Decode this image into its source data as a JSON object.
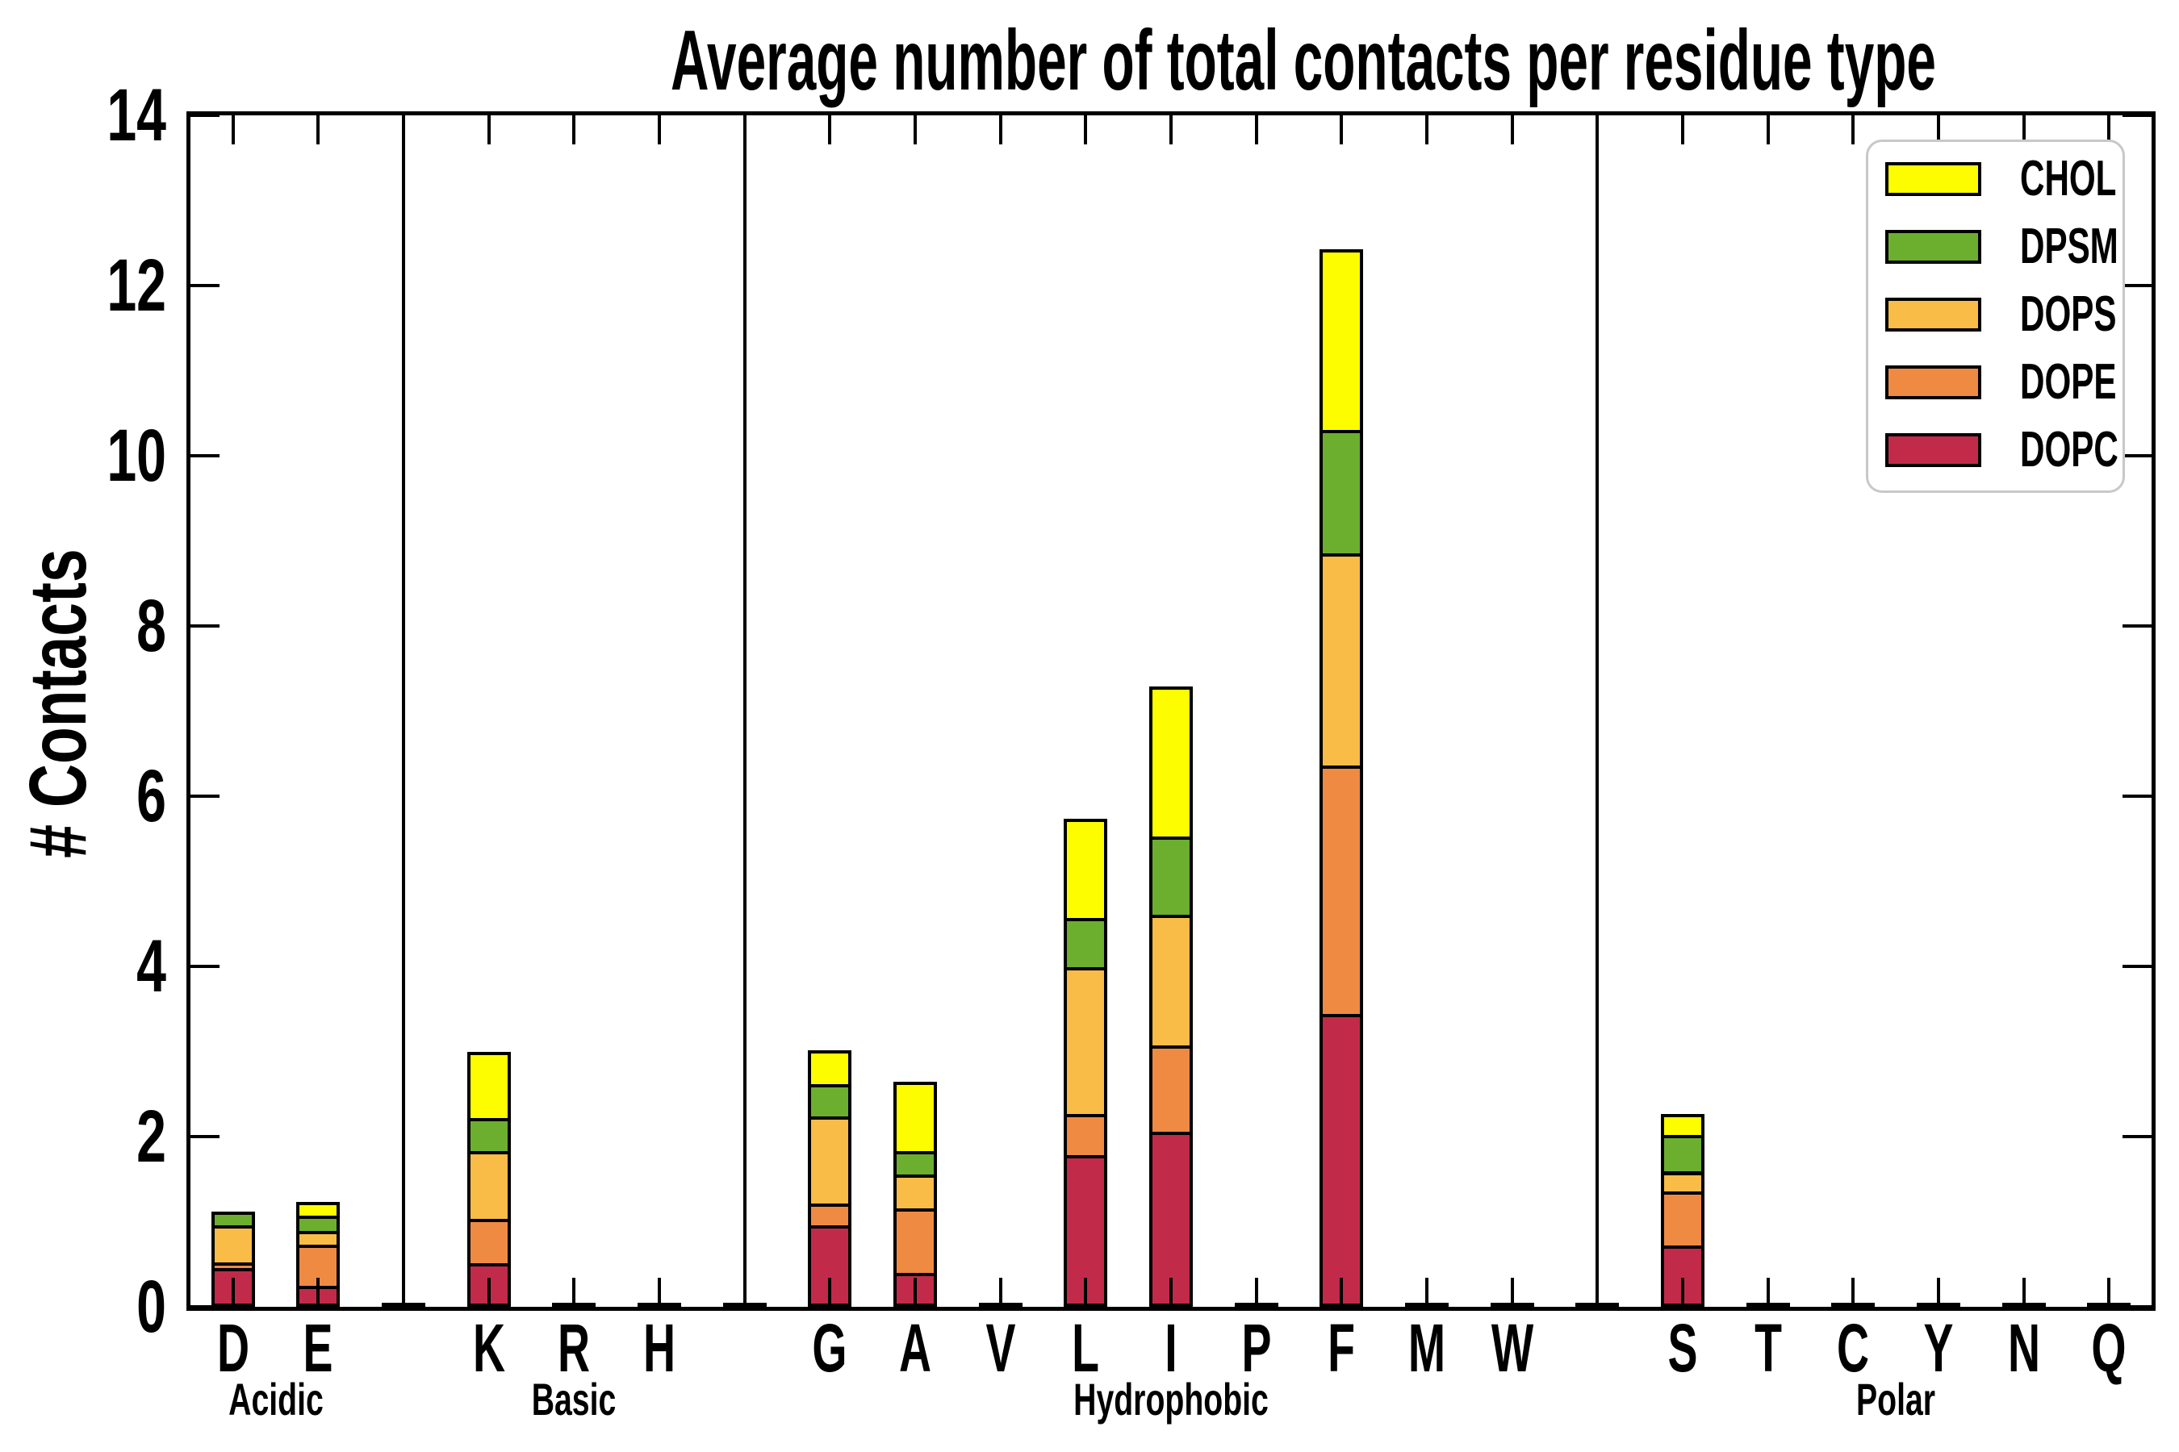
{
  "chart_data": {
    "type": "stacked-bar",
    "title": "Average number of total contacts per residue type",
    "ylabel": "# Contacts",
    "xlabel": "",
    "ylim": [
      0,
      14
    ],
    "yticks": [
      0,
      2,
      4,
      6,
      8,
      10,
      12,
      14
    ],
    "grid": "off",
    "legend_position": "upper-right",
    "legend": [
      "CHOL",
      "DPSM",
      "DOPS",
      "DOPE",
      "DOPC"
    ],
    "stack_order": [
      "DOPC",
      "DOPE",
      "DOPS",
      "DPSM",
      "CHOL"
    ],
    "colors": {
      "CHOL": "#fdfd00",
      "DPSM": "#6cae2e",
      "DOPS": "#f8bc47",
      "DOPE": "#ef8a43",
      "DOPC": "#c22a4a"
    },
    "groups": [
      {
        "label": "Acidic",
        "categories": [
          "D",
          "E"
        ]
      },
      {
        "label": "Basic",
        "categories": [
          "K",
          "R",
          "H"
        ]
      },
      {
        "label": "Hydrophobic",
        "categories": [
          "G",
          "A",
          "V",
          "L",
          "I",
          "P",
          "F",
          "M",
          "W"
        ]
      },
      {
        "label": "Polar",
        "categories": [
          "S",
          "T",
          "C",
          "Y",
          "N",
          "Q"
        ]
      }
    ],
    "values": {
      "D": {
        "DOPC": 0.42,
        "DOPE": 0.06,
        "DOPS": 0.44,
        "DPSM": 0.16,
        "CHOL": 0
      },
      "E": {
        "DOPC": 0.21,
        "DOPE": 0.48,
        "DOPS": 0.16,
        "DPSM": 0.18,
        "CHOL": 0.16
      },
      "K": {
        "DOPC": 0.47,
        "DOPE": 0.53,
        "DOPS": 0.79,
        "DPSM": 0.39,
        "CHOL": 0.78
      },
      "R": {
        "DOPC": 0,
        "DOPE": 0,
        "DOPS": 0,
        "DPSM": 0,
        "CHOL": 0
      },
      "H": {
        "DOPC": 0,
        "DOPE": 0,
        "DOPS": 0,
        "DPSM": 0,
        "CHOL": 0
      },
      "G": {
        "DOPC": 0.92,
        "DOPE": 0.26,
        "DOPS": 1.02,
        "DPSM": 0.38,
        "CHOL": 0.4
      },
      "A": {
        "DOPC": 0.36,
        "DOPE": 0.76,
        "DOPS": 0.4,
        "DPSM": 0.27,
        "CHOL": 0.82
      },
      "V": {
        "DOPC": 0,
        "DOPE": 0,
        "DOPS": 0,
        "DPSM": 0,
        "CHOL": 0
      },
      "L": {
        "DOPC": 1.74,
        "DOPE": 0.49,
        "DOPS": 1.72,
        "DPSM": 0.58,
        "CHOL": 1.17
      },
      "I": {
        "DOPC": 2.02,
        "DOPE": 1.01,
        "DOPS": 1.54,
        "DPSM": 0.92,
        "CHOL": 1.76
      },
      "P": {
        "DOPC": 0,
        "DOPE": 0,
        "DOPS": 0,
        "DPSM": 0,
        "CHOL": 0
      },
      "F": {
        "DOPC": 3.4,
        "DOPE": 2.92,
        "DOPS": 2.5,
        "DPSM": 1.45,
        "CHOL": 2.12
      },
      "M": {
        "DOPC": 0,
        "DOPE": 0,
        "DOPS": 0,
        "DPSM": 0,
        "CHOL": 0
      },
      "W": {
        "DOPC": 0,
        "DOPE": 0,
        "DOPS": 0,
        "DPSM": 0,
        "CHOL": 0
      },
      "S": {
        "DOPC": 0.68,
        "DOPE": 0.64,
        "DOPS": 0.23,
        "DPSM": 0.43,
        "CHOL": 0.25
      },
      "T": {
        "DOPC": 0,
        "DOPE": 0,
        "DOPS": 0,
        "DPSM": 0,
        "CHOL": 0
      },
      "C": {
        "DOPC": 0,
        "DOPE": 0,
        "DOPS": 0,
        "DPSM": 0,
        "CHOL": 0
      },
      "Y": {
        "DOPC": 0,
        "DOPE": 0,
        "DOPS": 0,
        "DPSM": 0,
        "CHOL": 0
      },
      "N": {
        "DOPC": 0,
        "DOPE": 0,
        "DOPS": 0,
        "DPSM": 0,
        "CHOL": 0
      },
      "Q": {
        "DOPC": 0,
        "DOPE": 0,
        "DOPS": 0,
        "DPSM": 0,
        "CHOL": 0
      }
    }
  }
}
